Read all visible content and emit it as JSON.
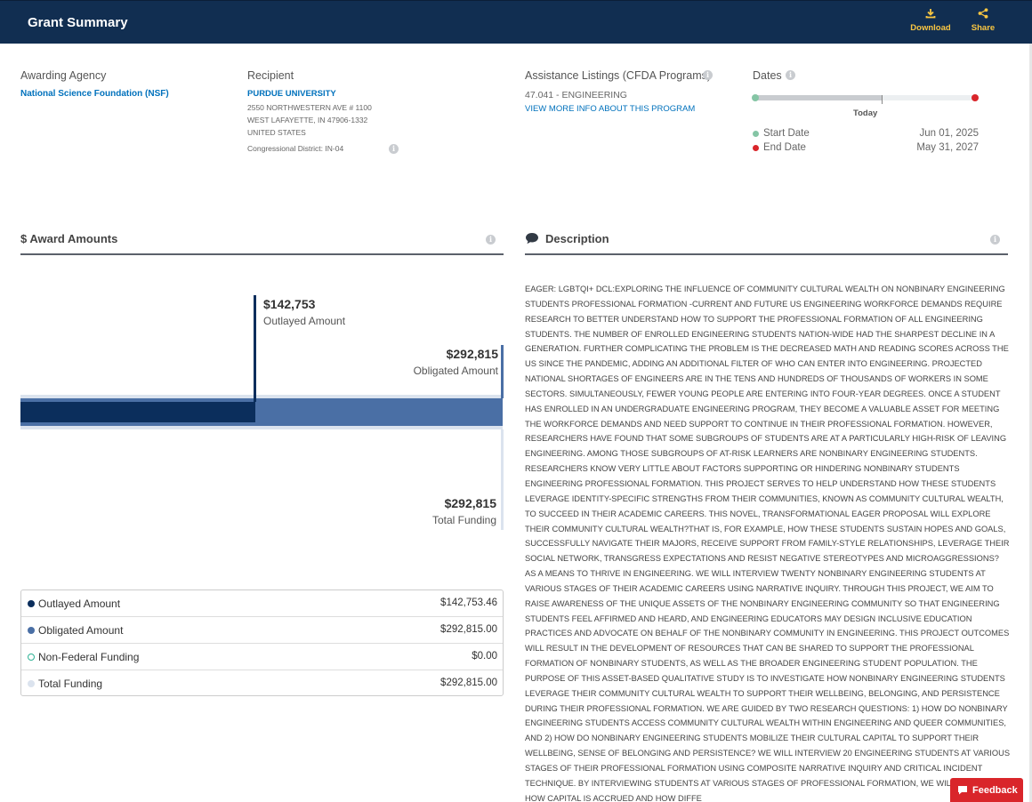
{
  "header": {
    "title": "Grant Summary",
    "download_label": "Download",
    "share_label": "Share"
  },
  "overview": {
    "agency": {
      "label": "Awarding Agency",
      "name": "National Science Foundation (NSF)"
    },
    "recipient": {
      "label": "Recipient",
      "name": "PURDUE UNIVERSITY",
      "address_line1": "2550 NORTHWESTERN AVE # 1100",
      "address_line2": "WEST LAFAYETTE, IN 47906-1332",
      "country": "UNITED STATES",
      "congressional_district": "Congressional District: IN-04"
    },
    "cfda": {
      "label": "Assistance Listings (CFDA Programs)",
      "program": "47.041 - ENGINEERING",
      "link": "VIEW MORE INFO ABOUT THIS PROGRAM"
    },
    "dates": {
      "label": "Dates",
      "today_label": "Today",
      "start_label": "Start Date",
      "start_value": "Jun 01, 2025",
      "end_label": "End Date",
      "end_value": "May 31, 2027",
      "elapsed_fraction": 0.57,
      "start_color": "#85c5a5",
      "end_color": "#d9252a"
    }
  },
  "award_amounts": {
    "title": "$ Award Amounts",
    "outlayed": {
      "value": "$142,753",
      "label": "Outlayed Amount",
      "color": "#0b2e5c"
    },
    "obligated": {
      "value": "$292,815",
      "label": "Obligated Amount",
      "color": "#4a6fa5"
    },
    "total": {
      "value": "$292,815",
      "label": "Total Funding",
      "color": "#dbe3ee"
    },
    "legend": [
      {
        "name": "Outlayed Amount",
        "value": "$142,753.46",
        "color": "#0b2e5c",
        "style": "filled"
      },
      {
        "name": "Obligated Amount",
        "value": "$292,815.00",
        "color": "#4a6fa5",
        "style": "filled"
      },
      {
        "name": "Non-Federal Funding",
        "value": "$0.00",
        "color": "#2eb295",
        "style": "outline"
      },
      {
        "name": "Total Funding",
        "value": "$292,815.00",
        "color": "#dbe3ee",
        "style": "filled"
      }
    ]
  },
  "description": {
    "title": "Description",
    "text": "EAGER: LGBTQI+ DCL:EXPLORING THE INFLUENCE OF COMMUNITY CULTURAL WEALTH ON NONBINARY ENGINEERING STUDENTS PROFESSIONAL FORMATION -CURRENT AND FUTURE US ENGINEERING WORKFORCE DEMANDS REQUIRE RESEARCH TO BETTER UNDERSTAND HOW TO SUPPORT THE PROFESSIONAL FORMATION OF ALL ENGINEERING STUDENTS. THE NUMBER OF ENROLLED ENGINEERING STUDENTS NATION-WIDE HAD THE SHARPEST DECLINE IN A GENERATION. FURTHER COMPLICATING THE PROBLEM IS THE DECREASED MATH AND READING SCORES ACROSS THE US SINCE THE PANDEMIC, ADDING AN ADDITIONAL FILTER OF WHO CAN ENTER INTO ENGINEERING. PROJECTED NATIONAL SHORTAGES OF ENGINEERS ARE IN THE TENS AND HUNDREDS OF THOUSANDS OF WORKERS IN SOME SECTORS. SIMULTANEOUSLY, FEWER YOUNG PEOPLE ARE ENTERING INTO FOUR-YEAR DEGREES. ONCE A STUDENT HAS ENROLLED IN AN UNDERGRADUATE ENGINEERING PROGRAM, THEY BECOME A VALUABLE ASSET FOR MEETING THE WORKFORCE DEMANDS AND NEED SUPPORT TO CONTINUE IN THEIR PROFESSIONAL FORMATION. HOWEVER, RESEARCHERS HAVE FOUND THAT SOME SUBGROUPS OF STUDENTS ARE AT A PARTICULARLY HIGH-RISK OF LEAVING ENGINEERING. AMONG THOSE SUBGROUPS OF AT-RISK LEARNERS ARE NONBINARY ENGINEERING STUDENTS. RESEARCHERS KNOW VERY LITTLE ABOUT FACTORS SUPPORTING OR HINDERING NONBINARY STUDENTS ENGINEERING PROFESSIONAL FORMATION. THIS PROJECT SERVES TO HELP UNDERSTAND HOW THESE STUDENTS LEVERAGE IDENTITY-SPECIFIC STRENGTHS FROM THEIR COMMUNITIES, KNOWN AS COMMUNITY CULTURAL WEALTH, TO SUCCEED IN THEIR ACADEMIC CAREERS. THIS NOVEL, TRANSFORMATIONAL EAGER PROPOSAL WILL EXPLORE THEIR COMMUNITY CULTURAL WEALTH?THAT IS, FOR EXAMPLE, HOW THESE STUDENTS SUSTAIN HOPES AND GOALS, SUCCESSFULLY NAVIGATE THEIR MAJORS, RECEIVE SUPPORT FROM FAMILY-STYLE RELATIONSHIPS, LEVERAGE THEIR SOCIAL NETWORK, TRANSGRESS EXPECTATIONS AND RESIST NEGATIVE STEREOTYPES AND MICROAGGRESSIONS?AS A MEANS TO THRIVE IN ENGINEERING. WE WILL INTERVIEW TWENTY NONBINARY ENGINEERING STUDENTS AT VARIOUS STAGES OF THEIR ACADEMIC CAREERS USING NARRATIVE INQUIRY. THROUGH THIS PROJECT, WE AIM TO RAISE AWARENESS OF THE UNIQUE ASSETS OF THE NONBINARY ENGINEERING COMMUNITY SO THAT ENGINEERING STUDENTS FEEL AFFIRMED AND HEARD, AND ENGINEERING EDUCATORS MAY DESIGN INCLUSIVE EDUCATION PRACTICES AND ADVOCATE ON BEHALF OF THE NONBINARY COMMUNITY IN ENGINEERING. THIS PROJECT OUTCOMES WILL RESULT IN THE DEVELOPMENT OF RESOURCES THAT CAN BE SHARED TO SUPPORT THE PROFESSIONAL FORMATION OF NONBINARY STUDENTS, AS WELL AS THE BROADER ENGINEERING STUDENT POPULATION. THE PURPOSE OF THIS ASSET-BASED QUALITATIVE STUDY IS TO INVESTIGATE HOW NONBINARY ENGINEERING STUDENTS LEVERAGE THEIR COMMUNITY CULTURAL WEALTH TO SUPPORT THEIR WELLBEING, BELONGING, AND PERSISTENCE DURING THEIR PROFESSIONAL FORMATION. WE ARE GUIDED BY TWO RESEARCH QUESTIONS: 1) HOW DO NONBINARY ENGINEERING STUDENTS ACCESS COMMUNITY CULTURAL WEALTH WITHIN ENGINEERING AND QUEER COMMUNITIES, AND 2) HOW DO NONBINARY ENGINEERING STUDENTS MOBILIZE THEIR CULTURAL CAPITAL TO SUPPORT THEIR WELLBEING, SENSE OF BELONGING AND PERSISTENCE? WE WILL INTERVIEW 20 ENGINEERING STUDENTS AT VARIOUS STAGES OF THEIR PROFESSIONAL FORMATION USING COMPOSITE NARRATIVE INQUIRY AND CRITICAL INCIDENT TECHNIQUE. BY INTERVIEWING STUDENTS AT VARIOUS STAGES OF PROFESSIONAL FORMATION, WE WILL EXPLORE HOW CAPITAL IS ACCRUED AND HOW DIFFE"
  },
  "feedback_label": "Feedback"
}
